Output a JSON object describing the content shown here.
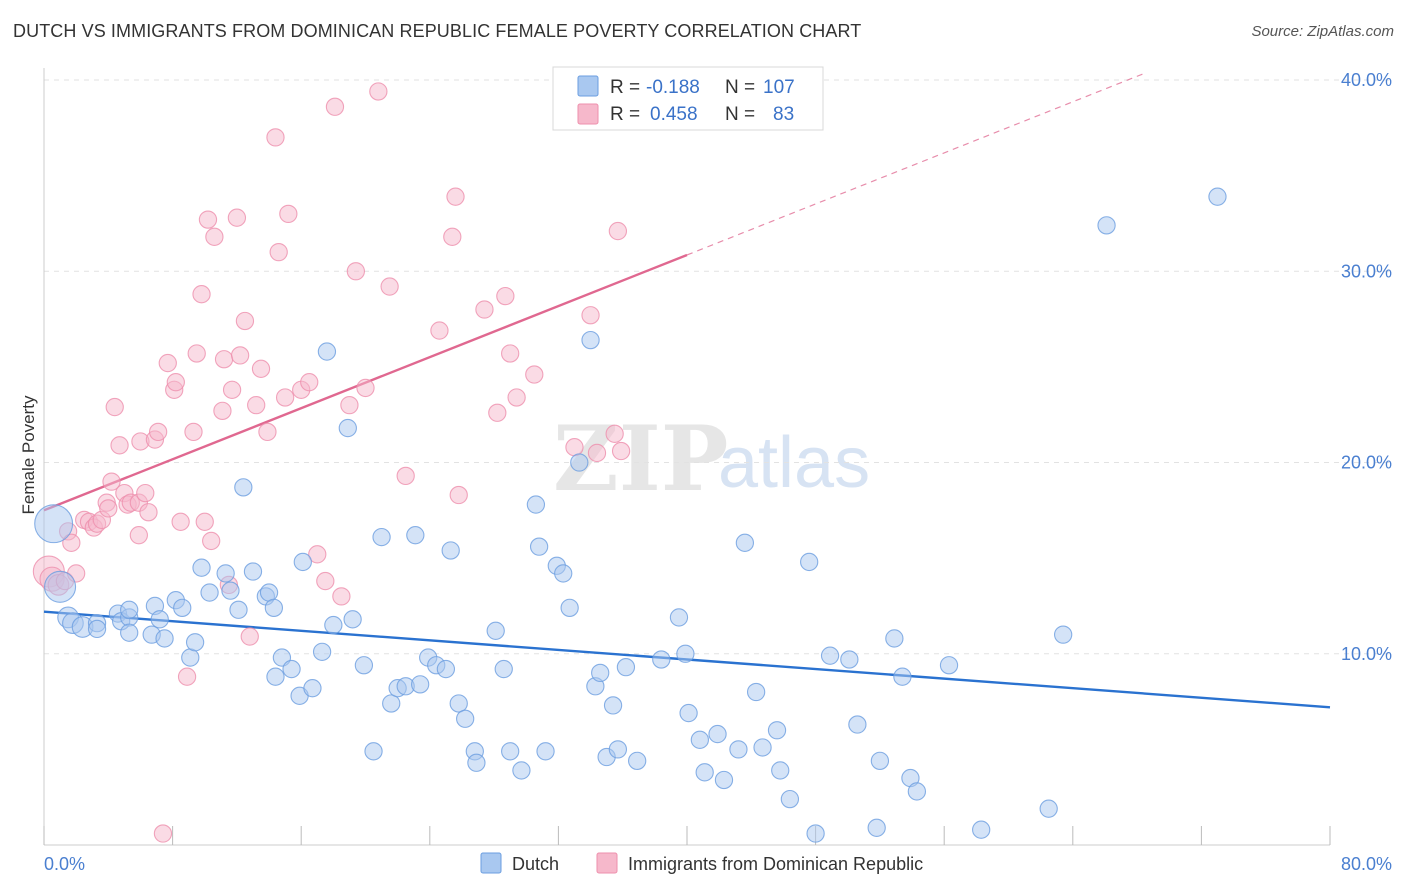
{
  "title": "DUTCH VS IMMIGRANTS FROM DOMINICAN REPUBLIC FEMALE POVERTY CORRELATION CHART",
  "source": "Source: ZipAtlas.com",
  "watermark": {
    "zip": "ZIP",
    "atlas": "atlas"
  },
  "colors": {
    "dutch_fill": "#a9c8f0",
    "dutch_stroke": "#6b9ee0",
    "dutch_line": "#2a72d0",
    "dom_fill": "#f6b8cb",
    "dom_stroke": "#ee8fac",
    "dom_line": "#e06890",
    "tick_text": "#4a7fd0",
    "grid": "#e2e2e2"
  },
  "legend": {
    "rows": [
      {
        "r_label": "R =",
        "r_value": "-0.188",
        "n_label": "N =",
        "n_value": "107"
      },
      {
        "r_label": "R =",
        "r_value": "0.458",
        "n_label": "N =",
        "n_value": "83"
      }
    ]
  },
  "bottom_legend": {
    "dutch": "Dutch",
    "dominican": "Immigrants from Dominican Republic"
  },
  "chart_data": {
    "type": "scatter",
    "title": "DUTCH VS IMMIGRANTS FROM DOMINICAN REPUBLIC FEMALE POVERTY CORRELATION CHART",
    "xlabel": "",
    "ylabel": "Female Poverty",
    "xlim": [
      0,
      80
    ],
    "ylim": [
      0,
      40
    ],
    "x_tick_labels": [
      "0.0%",
      "80.0%"
    ],
    "y_tick_labels": [
      "10.0%",
      "20.0%",
      "30.0%",
      "40.0%"
    ],
    "y_ticks": [
      10,
      20,
      30,
      40
    ],
    "grid": true,
    "legend_position": "top-center",
    "series": [
      {
        "name": "Dutch",
        "r": -0.188,
        "n": 107,
        "trend": {
          "x": [
            0,
            80
          ],
          "y": [
            12.2,
            7.2
          ],
          "solid_until": 80
        },
        "points": [
          [
            0.6,
            16.8,
            22
          ],
          [
            1.0,
            13.5,
            18
          ],
          [
            1.5,
            11.9,
            12
          ],
          [
            1.8,
            11.6,
            12
          ],
          [
            2.4,
            11.4,
            12
          ],
          [
            3.3,
            11.6,
            10
          ],
          [
            3.3,
            11.3,
            10
          ],
          [
            4.6,
            12.1,
            10
          ],
          [
            4.8,
            11.7,
            10
          ],
          [
            5.3,
            11.9,
            10
          ],
          [
            5.3,
            11.1,
            10
          ],
          [
            5.3,
            12.3,
            10
          ],
          [
            6.7,
            11.0,
            10
          ],
          [
            6.9,
            12.5,
            10
          ],
          [
            7.2,
            11.8,
            10
          ],
          [
            7.5,
            10.8,
            10
          ],
          [
            8.2,
            12.8,
            10
          ],
          [
            8.6,
            12.4,
            10
          ],
          [
            9.1,
            9.8,
            10
          ],
          [
            9.4,
            10.6,
            10
          ],
          [
            9.8,
            14.5,
            10
          ],
          [
            10.3,
            13.2,
            10
          ],
          [
            11.3,
            14.2,
            10
          ],
          [
            11.6,
            13.3,
            10
          ],
          [
            12.1,
            12.3,
            10
          ],
          [
            12.4,
            18.7,
            10
          ],
          [
            13.0,
            14.3,
            10
          ],
          [
            13.8,
            13.0,
            10
          ],
          [
            14.0,
            13.2,
            10
          ],
          [
            14.3,
            12.4,
            10
          ],
          [
            14.4,
            8.8,
            10
          ],
          [
            14.8,
            9.8,
            10
          ],
          [
            15.4,
            9.2,
            10
          ],
          [
            15.9,
            7.8,
            10
          ],
          [
            16.1,
            14.8,
            10
          ],
          [
            16.7,
            8.2,
            10
          ],
          [
            17.3,
            10.1,
            10
          ],
          [
            17.6,
            25.8,
            10
          ],
          [
            18.0,
            11.5,
            10
          ],
          [
            18.9,
            21.8,
            10
          ],
          [
            19.2,
            11.8,
            10
          ],
          [
            19.9,
            9.4,
            10
          ],
          [
            20.5,
            4.9,
            10
          ],
          [
            21.0,
            16.1,
            10
          ],
          [
            21.6,
            7.4,
            10
          ],
          [
            22.0,
            8.2,
            10
          ],
          [
            22.5,
            8.3,
            10
          ],
          [
            23.1,
            16.2,
            10
          ],
          [
            23.4,
            8.4,
            10
          ],
          [
            23.9,
            9.8,
            10
          ],
          [
            24.4,
            9.4,
            10
          ],
          [
            25.0,
            9.2,
            10
          ],
          [
            25.3,
            15.4,
            10
          ],
          [
            25.8,
            7.4,
            10
          ],
          [
            26.2,
            6.6,
            10
          ],
          [
            26.8,
            4.9,
            10
          ],
          [
            26.9,
            4.3,
            10
          ],
          [
            28.1,
            11.2,
            10
          ],
          [
            28.6,
            9.2,
            10
          ],
          [
            29.0,
            4.9,
            10
          ],
          [
            29.7,
            3.9,
            10
          ],
          [
            30.6,
            17.8,
            10
          ],
          [
            30.8,
            15.6,
            10
          ],
          [
            31.2,
            4.9,
            10
          ],
          [
            31.9,
            14.6,
            10
          ],
          [
            32.3,
            14.2,
            10
          ],
          [
            32.7,
            12.4,
            10
          ],
          [
            33.3,
            20.0,
            10
          ],
          [
            34.0,
            26.4,
            10
          ],
          [
            34.3,
            8.3,
            10
          ],
          [
            34.6,
            9.0,
            10
          ],
          [
            35.0,
            4.6,
            10
          ],
          [
            35.4,
            7.3,
            10
          ],
          [
            35.7,
            5.0,
            10
          ],
          [
            36.2,
            9.3,
            10
          ],
          [
            36.9,
            4.4,
            10
          ],
          [
            38.4,
            9.7,
            10
          ],
          [
            39.5,
            11.9,
            10
          ],
          [
            39.9,
            10.0,
            10
          ],
          [
            40.1,
            6.9,
            10
          ],
          [
            40.8,
            5.5,
            10
          ],
          [
            41.1,
            3.8,
            10
          ],
          [
            41.9,
            5.8,
            10
          ],
          [
            42.3,
            3.4,
            10
          ],
          [
            43.2,
            5.0,
            10
          ],
          [
            43.6,
            15.8,
            10
          ],
          [
            44.3,
            8.0,
            10
          ],
          [
            44.7,
            5.1,
            10
          ],
          [
            45.6,
            6.0,
            10
          ],
          [
            45.8,
            3.9,
            10
          ],
          [
            46.4,
            2.4,
            10
          ],
          [
            47.6,
            14.8,
            10
          ],
          [
            48.0,
            0.6,
            10
          ],
          [
            48.9,
            9.9,
            10
          ],
          [
            50.1,
            9.7,
            10
          ],
          [
            50.6,
            6.3,
            10
          ],
          [
            51.8,
            0.9,
            10
          ],
          [
            52.0,
            4.4,
            10
          ],
          [
            52.9,
            10.8,
            10
          ],
          [
            53.4,
            8.8,
            10
          ],
          [
            53.9,
            3.5,
            10
          ],
          [
            54.3,
            2.8,
            10
          ],
          [
            56.3,
            9.4,
            10
          ],
          [
            58.3,
            0.8,
            10
          ],
          [
            62.5,
            1.9,
            10
          ],
          [
            63.4,
            11.0,
            10
          ],
          [
            66.1,
            32.4,
            10
          ],
          [
            73.0,
            33.9,
            10
          ]
        ]
      },
      {
        "name": "Immigrants from Dominican Republic",
        "r": 0.458,
        "n": 83,
        "trend": {
          "x": [
            0,
            80
          ],
          "y": [
            17.5,
            44.2
          ],
          "solid_until": 40
        },
        "points": [
          [
            0.3,
            14.3,
            18
          ],
          [
            0.5,
            13.9,
            14
          ],
          [
            0.9,
            13.6,
            12
          ],
          [
            1.3,
            13.8,
            10
          ],
          [
            1.5,
            16.4,
            10
          ],
          [
            1.7,
            15.8,
            10
          ],
          [
            2.0,
            14.2,
            10
          ],
          [
            2.5,
            17.0,
            10
          ],
          [
            2.8,
            16.9,
            10
          ],
          [
            3.1,
            16.6,
            10
          ],
          [
            3.3,
            16.8,
            10
          ],
          [
            3.6,
            17.0,
            10
          ],
          [
            3.9,
            17.9,
            10
          ],
          [
            4.0,
            17.6,
            10
          ],
          [
            4.2,
            19.0,
            10
          ],
          [
            4.4,
            22.9,
            10
          ],
          [
            4.7,
            20.9,
            10
          ],
          [
            5.0,
            18.4,
            10
          ],
          [
            5.2,
            17.8,
            10
          ],
          [
            5.4,
            17.9,
            10
          ],
          [
            5.9,
            16.2,
            10
          ],
          [
            5.9,
            17.9,
            10
          ],
          [
            6.0,
            21.1,
            10
          ],
          [
            6.3,
            18.4,
            10
          ],
          [
            6.5,
            17.4,
            10
          ],
          [
            6.9,
            21.2,
            10
          ],
          [
            7.1,
            21.6,
            10
          ],
          [
            7.4,
            0.6,
            10
          ],
          [
            7.7,
            25.2,
            10
          ],
          [
            8.1,
            23.8,
            10
          ],
          [
            8.2,
            24.2,
            10
          ],
          [
            8.5,
            16.9,
            10
          ],
          [
            8.9,
            8.8,
            10
          ],
          [
            9.3,
            21.6,
            10
          ],
          [
            9.5,
            25.7,
            10
          ],
          [
            9.8,
            28.8,
            10
          ],
          [
            10.0,
            16.9,
            10
          ],
          [
            10.2,
            32.7,
            10
          ],
          [
            10.4,
            15.9,
            10
          ],
          [
            10.6,
            31.8,
            10
          ],
          [
            11.1,
            22.7,
            10
          ],
          [
            11.2,
            25.4,
            10
          ],
          [
            11.5,
            13.6,
            10
          ],
          [
            11.7,
            23.8,
            10
          ],
          [
            12.0,
            32.8,
            10
          ],
          [
            12.2,
            25.6,
            10
          ],
          [
            12.5,
            27.4,
            10
          ],
          [
            12.8,
            10.9,
            10
          ],
          [
            13.2,
            23.0,
            10
          ],
          [
            13.5,
            24.9,
            10
          ],
          [
            13.9,
            21.6,
            10
          ],
          [
            14.4,
            37.0,
            10
          ],
          [
            14.6,
            31.0,
            10
          ],
          [
            15.0,
            23.4,
            10
          ],
          [
            15.2,
            33.0,
            10
          ],
          [
            16.0,
            23.8,
            10
          ],
          [
            16.5,
            24.2,
            10
          ],
          [
            17.0,
            15.2,
            10
          ],
          [
            17.5,
            13.8,
            10
          ],
          [
            18.1,
            38.6,
            10
          ],
          [
            18.5,
            13.0,
            10
          ],
          [
            19.0,
            23.0,
            10
          ],
          [
            19.4,
            30.0,
            10
          ],
          [
            20.0,
            23.9,
            10
          ],
          [
            20.8,
            39.4,
            10
          ],
          [
            21.5,
            29.2,
            10
          ],
          [
            22.5,
            19.3,
            10
          ],
          [
            24.6,
            26.9,
            10
          ],
          [
            25.4,
            31.8,
            10
          ],
          [
            25.6,
            33.9,
            10
          ],
          [
            25.8,
            18.3,
            10
          ],
          [
            27.4,
            28.0,
            10
          ],
          [
            28.2,
            22.6,
            10
          ],
          [
            28.7,
            28.7,
            10
          ],
          [
            29.0,
            25.7,
            10
          ],
          [
            29.4,
            23.4,
            10
          ],
          [
            30.5,
            24.6,
            10
          ],
          [
            33.0,
            20.8,
            10
          ],
          [
            34.0,
            27.7,
            10
          ],
          [
            34.4,
            20.5,
            10
          ],
          [
            35.5,
            21.5,
            10
          ],
          [
            35.7,
            32.1,
            10
          ],
          [
            35.9,
            20.6,
            10
          ]
        ]
      }
    ]
  }
}
